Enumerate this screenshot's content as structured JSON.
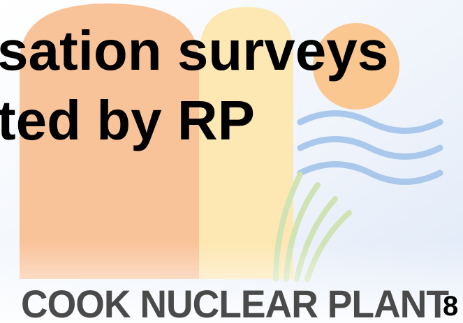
{
  "slide": {
    "title_lines": [
      "sation surveys",
      "ted by RP"
    ],
    "logo": "COOK NUCLEAR PLANT",
    "page_number": "8"
  }
}
